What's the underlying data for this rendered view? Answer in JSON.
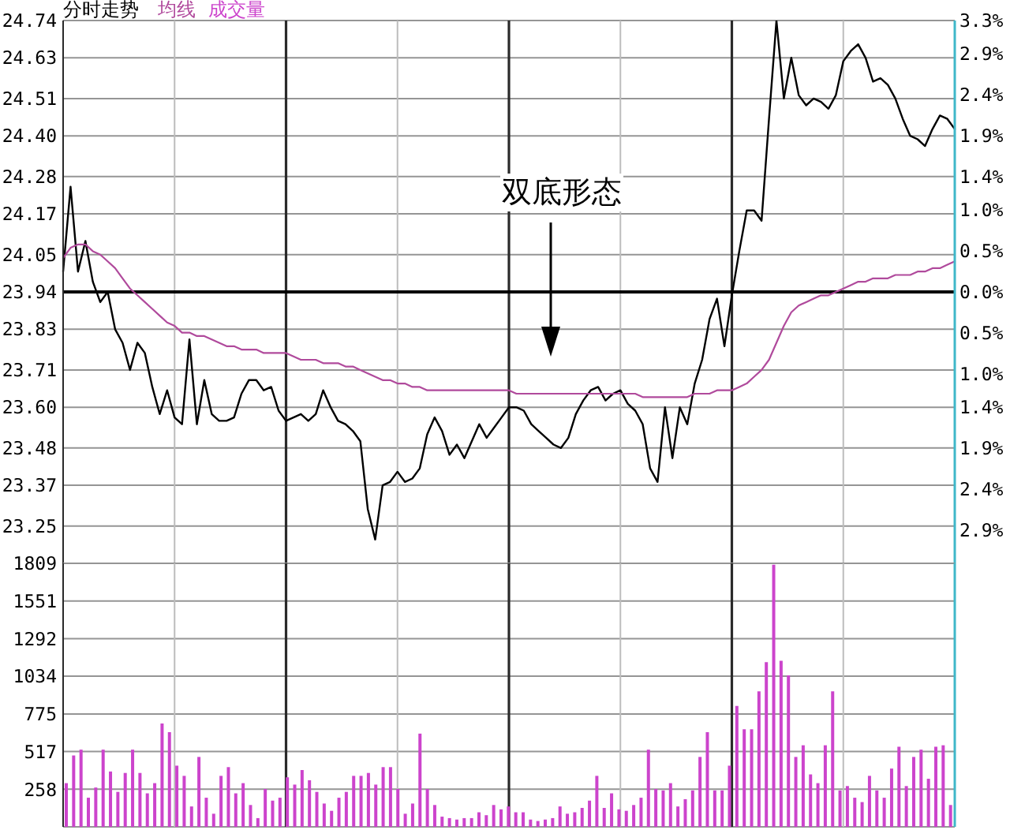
{
  "chart_data": [
    {
      "type": "line",
      "title": "分时走势",
      "legend": "top",
      "grid": true,
      "categories": [
        null,
        null,
        null,
        null,
        null,
        null,
        null,
        null,
        null,
        null,
        null,
        null,
        null,
        null,
        null,
        null,
        null,
        null,
        null,
        null,
        null,
        null,
        null,
        null,
        null,
        null,
        null,
        null,
        null,
        null,
        null,
        null,
        null,
        null,
        null,
        null,
        null,
        null,
        null,
        null,
        null,
        null,
        null,
        null,
        null,
        null,
        null,
        null,
        null,
        null,
        null,
        null,
        null,
        null,
        null,
        null,
        null,
        null,
        null,
        null,
        null,
        null,
        null,
        null,
        null,
        null,
        null,
        null,
        null,
        null,
        null,
        null,
        null,
        null,
        null,
        null,
        null,
        null,
        null,
        null,
        null,
        null,
        null,
        null,
        null,
        null,
        null,
        null,
        null,
        null,
        null,
        null,
        null,
        null,
        null,
        null,
        null,
        null,
        null,
        null,
        null,
        null,
        null,
        null,
        null,
        null,
        null,
        null,
        null,
        null,
        null,
        null,
        null,
        null,
        null,
        null,
        null,
        null,
        null,
        null,
        null
      ],
      "series": [
        {
          "color": "#000000",
          "values": [
            24.0,
            24.25,
            24.0,
            24.09,
            23.97,
            23.91,
            23.94,
            23.83,
            23.79,
            23.71,
            23.79,
            23.76,
            23.66,
            23.58,
            23.65,
            23.57,
            23.55,
            23.8,
            23.55,
            23.68,
            23.58,
            23.56,
            23.56,
            23.57,
            23.64,
            23.68,
            23.68,
            23.65,
            23.66,
            23.59,
            23.56,
            23.57,
            23.58,
            23.56,
            23.58,
            23.65,
            23.6,
            23.56,
            23.55,
            23.53,
            23.5,
            23.3,
            23.21,
            23.37,
            23.38,
            23.41,
            23.38,
            23.39,
            23.42,
            23.52,
            23.57,
            23.53,
            23.46,
            23.49,
            23.45,
            23.5,
            23.55,
            23.51,
            23.54,
            23.57,
            23.6,
            23.6,
            23.59,
            23.55,
            23.53,
            23.51,
            23.49,
            23.48,
            23.51,
            23.58,
            23.62,
            23.65,
            23.66,
            23.62,
            23.64,
            23.65,
            23.61,
            23.59,
            23.55,
            23.42,
            23.38,
            23.6,
            23.45,
            23.6,
            23.55,
            23.67,
            23.74,
            23.86,
            23.92,
            23.78,
            23.93,
            24.06,
            24.18,
            24.18,
            24.15,
            24.45,
            24.74,
            24.51,
            24.63,
            24.52,
            24.49,
            24.51,
            24.5,
            24.48,
            24.52,
            24.62,
            24.65,
            24.67,
            24.63,
            24.56,
            24.57,
            24.55,
            24.51,
            24.45,
            24.4,
            24.39,
            24.37,
            24.42,
            24.46,
            24.45,
            24.42
          ]
        },
        {
          "name": "均线",
          "color": "#b04a9c",
          "values": [
            24.04,
            24.07,
            24.08,
            24.08,
            24.06,
            24.05,
            24.03,
            24.01,
            23.98,
            23.95,
            23.93,
            23.91,
            23.89,
            23.87,
            23.85,
            23.84,
            23.82,
            23.82,
            23.81,
            23.81,
            23.8,
            23.79,
            23.78,
            23.78,
            23.77,
            23.77,
            23.77,
            23.76,
            23.76,
            23.76,
            23.76,
            23.75,
            23.74,
            23.74,
            23.74,
            23.73,
            23.73,
            23.73,
            23.72,
            23.72,
            23.71,
            23.7,
            23.69,
            23.68,
            23.68,
            23.67,
            23.67,
            23.66,
            23.66,
            23.65,
            23.65,
            23.65,
            23.65,
            23.65,
            23.65,
            23.65,
            23.65,
            23.65,
            23.65,
            23.65,
            23.65,
            23.64,
            23.64,
            23.64,
            23.64,
            23.64,
            23.64,
            23.64,
            23.64,
            23.64,
            23.64,
            23.64,
            23.64,
            23.64,
            23.64,
            23.64,
            23.64,
            23.64,
            23.63,
            23.63,
            23.63,
            23.63,
            23.63,
            23.63,
            23.63,
            23.64,
            23.64,
            23.64,
            23.65,
            23.65,
            23.65,
            23.66,
            23.67,
            23.69,
            23.71,
            23.74,
            23.79,
            23.84,
            23.88,
            23.9,
            23.91,
            23.92,
            23.93,
            23.93,
            23.94,
            23.95,
            23.96,
            23.97,
            23.97,
            23.98,
            23.98,
            23.98,
            23.99,
            23.99,
            23.99,
            24.0,
            24.0,
            24.01,
            24.01,
            24.02,
            24.03
          ]
        }
      ],
      "ylim": [
        23.14,
        24.74
      ],
      "yticks": [
        23.25,
        23.37,
        23.48,
        {
          "value": 23.6,
          "label": "23.60"
        },
        23.71,
        23.83,
        23.94,
        24.05,
        24.17,
        24.28,
        {
          "value": 24.4,
          "label": "24.40"
        },
        24.51,
        24.63,
        24.74
      ],
      "y2lim": [
        -3.3,
        3.3
      ],
      "y2ticks": [
        {
          "value": -2.9,
          "label": "2.9%"
        },
        {
          "value": -2.4,
          "label": "2.4%"
        },
        {
          "value": -1.9,
          "label": "1.9%"
        },
        {
          "value": -1.4,
          "label": "1.4%"
        },
        {
          "value": -1.0,
          "label": "1.0%"
        },
        {
          "value": -0.5,
          "label": "0.5%"
        },
        {
          "value": 0,
          "label": "0.0%"
        },
        {
          "value": 0.5,
          "label": "0.5%"
        },
        {
          "value": 1.0,
          "label": "1.0%"
        },
        {
          "value": 1.4,
          "label": "1.4%"
        },
        {
          "value": 1.9,
          "label": "1.9%"
        },
        {
          "value": 2.4,
          "label": "2.4%"
        },
        {
          "value": 2.9,
          "label": "2.9%"
        },
        {
          "value": 3.3,
          "label": "3.3%"
        }
      ],
      "ref_lines": [
        {
          "axis": "y",
          "value": 23.94,
          "color": "#000000"
        }
      ],
      "annotations": [
        "双底形态"
      ]
    },
    {
      "type": "bar",
      "legend": "top",
      "grid": true,
      "categories": [
        null,
        null,
        null,
        null,
        null,
        null,
        null,
        null,
        null,
        null,
        null,
        null,
        null,
        null,
        null,
        null,
        null,
        null,
        null,
        null,
        null,
        null,
        null,
        null,
        null,
        null,
        null,
        null,
        null,
        null,
        null,
        null,
        null,
        null,
        null,
        null,
        null,
        null,
        null,
        null,
        null,
        null,
        null,
        null,
        null,
        null,
        null,
        null,
        null,
        null,
        null,
        null,
        null,
        null,
        null,
        null,
        null,
        null,
        null,
        null,
        null,
        null,
        null,
        null,
        null,
        null,
        null,
        null,
        null,
        null,
        null,
        null,
        null,
        null,
        null,
        null,
        null,
        null,
        null,
        null,
        null,
        null,
        null,
        null,
        null,
        null,
        null,
        null,
        null,
        null,
        null,
        null,
        null,
        null,
        null,
        null,
        null,
        null,
        null,
        null,
        null,
        null,
        null,
        null,
        null,
        null,
        null,
        null,
        null,
        null,
        null,
        null,
        null,
        null,
        null,
        null,
        null,
        null,
        null,
        null,
        null
      ],
      "series": [
        {
          "name": "成交量",
          "color": "#cc44cc",
          "values": [
            300,
            490,
            530,
            200,
            270,
            530,
            380,
            240,
            370,
            530,
            370,
            230,
            300,
            710,
            650,
            420,
            350,
            140,
            480,
            200,
            90,
            350,
            410,
            230,
            300,
            150,
            60,
            260,
            180,
            200,
            340,
            290,
            390,
            320,
            240,
            160,
            110,
            200,
            240,
            350,
            350,
            370,
            290,
            410,
            410,
            260,
            90,
            160,
            640,
            260,
            150,
            70,
            60,
            50,
            60,
            60,
            100,
            80,
            150,
            120,
            140,
            100,
            100,
            50,
            40,
            50,
            60,
            140,
            90,
            100,
            130,
            180,
            350,
            130,
            230,
            120,
            110,
            150,
            200,
            530,
            260,
            250,
            300,
            140,
            190,
            250,
            480,
            650,
            250,
            250,
            420,
            830,
            670,
            670,
            930,
            1130,
            1800,
            1140,
            1040,
            480,
            560,
            360,
            300,
            560,
            930,
            250,
            280,
            200,
            170,
            350,
            250,
            200,
            400,
            550,
            280,
            480,
            530,
            330,
            550,
            560,
            150
          ]
        }
      ],
      "ylim": [
        0,
        1809
      ],
      "yticks": [
        258,
        517,
        775,
        1034,
        1292,
        1551,
        1809
      ]
    }
  ]
}
